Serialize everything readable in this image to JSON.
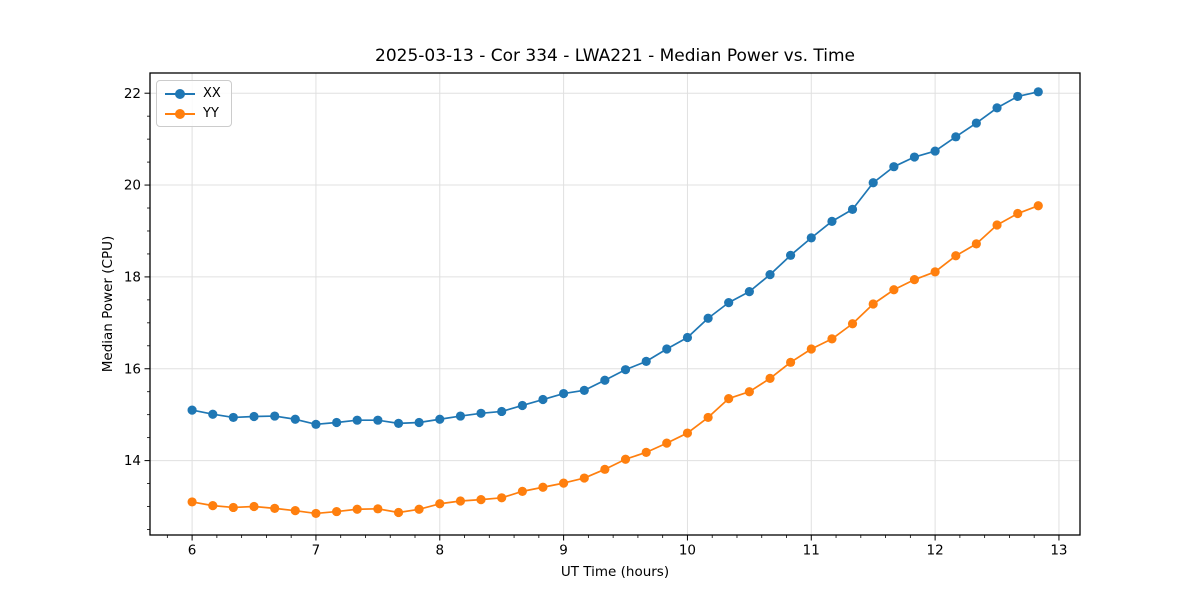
{
  "chart_data": {
    "type": "line",
    "title": "2025-03-13 - Cor 334 - LWA221 - Median Power vs. Time",
    "xlabel": "UT Time (hours)",
    "ylabel": "Median Power (CPU)",
    "xlim": [
      5.66,
      13.17
    ],
    "ylim": [
      12.38,
      22.44
    ],
    "x_ticks": [
      6,
      7,
      8,
      9,
      10,
      11,
      12,
      13
    ],
    "y_ticks": [
      14,
      16,
      18,
      20,
      22
    ],
    "x_minor_step": 0.2,
    "y_minor_step": 0.5,
    "grid": true,
    "grid_color": "#e0e0e0",
    "spine_color": "#000000",
    "tick_label_color": "#000000",
    "legend_position": "upper left",
    "x": [
      6.0,
      6.167,
      6.333,
      6.5,
      6.667,
      6.833,
      7.0,
      7.167,
      7.333,
      7.5,
      7.667,
      7.833,
      8.0,
      8.167,
      8.333,
      8.5,
      8.667,
      8.833,
      9.0,
      9.167,
      9.333,
      9.5,
      9.667,
      9.833,
      10.0,
      10.167,
      10.333,
      10.5,
      10.667,
      10.833,
      11.0,
      11.167,
      11.333,
      11.5,
      11.667,
      11.833,
      12.0,
      12.167,
      12.333,
      12.5,
      12.667,
      12.833
    ],
    "series": [
      {
        "name": "XX",
        "color": "#1f77b4",
        "values": [
          15.1,
          15.01,
          14.94,
          14.96,
          14.97,
          14.9,
          14.79,
          14.83,
          14.88,
          14.88,
          14.81,
          14.83,
          14.9,
          14.97,
          15.03,
          15.07,
          15.2,
          15.33,
          15.46,
          15.53,
          15.75,
          15.98,
          16.16,
          16.43,
          16.68,
          17.1,
          17.44,
          17.68,
          18.05,
          18.47,
          18.85,
          19.21,
          19.47,
          20.05,
          20.4,
          20.61,
          20.74,
          21.05,
          21.35,
          21.68,
          21.93,
          22.03
        ]
      },
      {
        "name": "YY",
        "color": "#ff7f0e",
        "values": [
          13.1,
          13.02,
          12.98,
          13.0,
          12.96,
          12.91,
          12.85,
          12.89,
          12.94,
          12.95,
          12.87,
          12.94,
          13.06,
          13.12,
          13.15,
          13.19,
          13.33,
          13.42,
          13.51,
          13.62,
          13.81,
          14.03,
          14.18,
          14.38,
          14.6,
          14.94,
          15.35,
          15.5,
          15.79,
          16.14,
          16.43,
          16.65,
          16.98,
          17.41,
          17.72,
          17.94,
          18.11,
          18.46,
          18.72,
          19.13,
          19.38,
          19.55
        ]
      }
    ]
  }
}
